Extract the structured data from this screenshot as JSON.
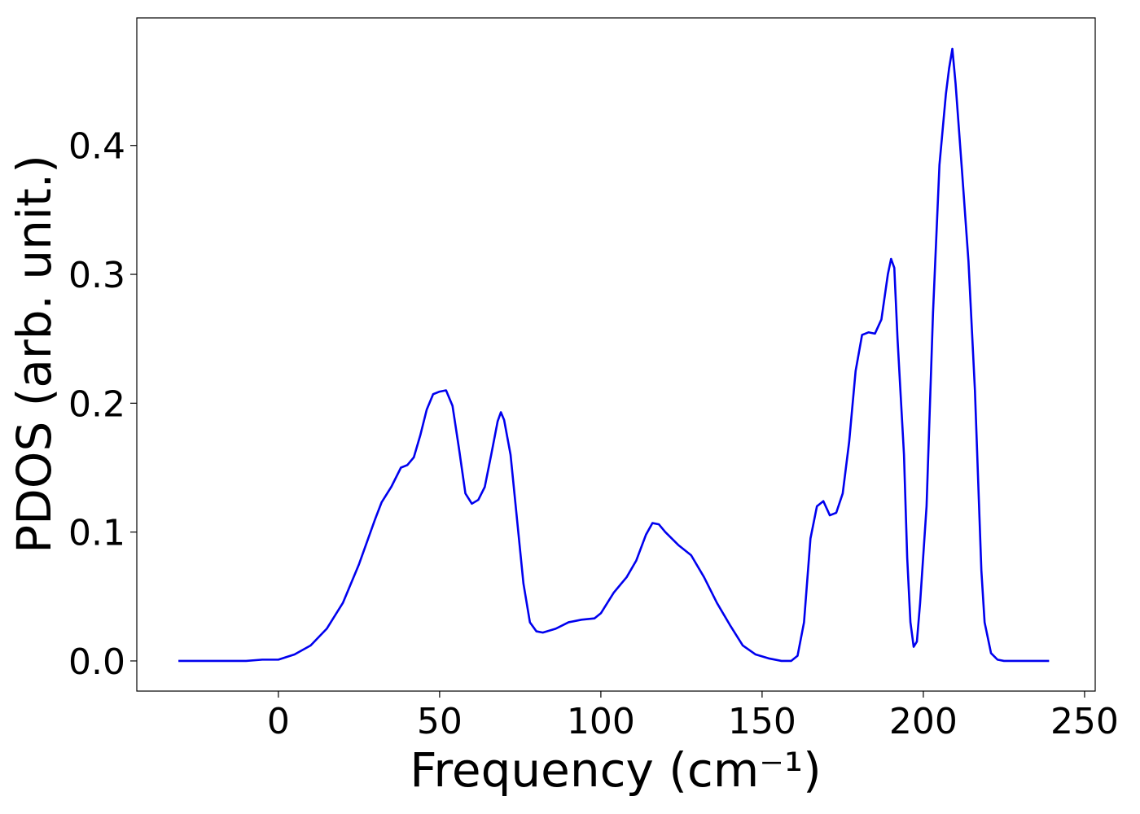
{
  "chart_data": {
    "type": "line",
    "xlabel": "Frequency (cm⁻¹)",
    "ylabel": "PDOS (arb. unit.)",
    "xlim": [
      -43.9,
      253.3
    ],
    "ylim": [
      -0.0234,
      0.499
    ],
    "xticks": [
      0,
      50,
      100,
      150,
      200,
      250
    ],
    "yticks": [
      {
        "value": 0,
        "label": "0.0"
      },
      0.1,
      0.2,
      0.3,
      0.4
    ],
    "grid": false,
    "series": [
      {
        "color": "#0000ee",
        "x": [
          -31,
          -10,
          -5,
          0,
          5,
          10,
          15,
          20,
          25,
          30,
          32,
          35,
          38,
          40,
          42,
          44,
          46,
          48,
          50,
          52,
          54,
          56,
          58,
          60,
          62,
          64,
          66,
          68,
          69,
          70,
          72,
          74,
          76,
          78,
          80,
          82,
          86,
          90,
          94,
          98,
          100,
          104,
          108,
          111,
          114,
          116,
          118,
          120,
          124,
          128,
          132,
          136,
          140,
          144,
          148,
          152,
          156,
          159,
          161,
          163,
          165,
          167,
          169,
          171,
          173,
          175,
          177,
          179,
          181,
          183,
          185,
          187,
          189,
          190,
          191,
          192,
          194,
          195,
          196,
          197,
          198,
          199,
          201,
          203,
          205,
          207,
          208,
          209,
          210,
          212,
          214,
          216,
          218,
          219,
          221,
          223,
          225,
          239
        ],
        "values": [
          0,
          0,
          0.001,
          0.001,
          0.005,
          0.012,
          0.025,
          0.045,
          0.075,
          0.11,
          0.123,
          0.135,
          0.15,
          0.152,
          0.158,
          0.175,
          0.195,
          0.207,
          0.209,
          0.21,
          0.198,
          0.165,
          0.13,
          0.122,
          0.125,
          0.135,
          0.16,
          0.186,
          0.193,
          0.187,
          0.16,
          0.11,
          0.06,
          0.03,
          0.023,
          0.022,
          0.025,
          0.03,
          0.032,
          0.033,
          0.037,
          0.053,
          0.065,
          0.078,
          0.098,
          0.107,
          0.106,
          0.1,
          0.09,
          0.082,
          0.065,
          0.045,
          0.028,
          0.012,
          0.005,
          0.002,
          0,
          0,
          0.004,
          0.03,
          0.095,
          0.12,
          0.124,
          0.113,
          0.115,
          0.13,
          0.17,
          0.225,
          0.253,
          0.255,
          0.254,
          0.265,
          0.3,
          0.312,
          0.305,
          0.25,
          0.16,
          0.08,
          0.03,
          0.011,
          0.015,
          0.045,
          0.12,
          0.27,
          0.385,
          0.44,
          0.46,
          0.475,
          0.448,
          0.38,
          0.31,
          0.21,
          0.07,
          0.03,
          0.006,
          0.001,
          0,
          0
        ]
      }
    ]
  }
}
